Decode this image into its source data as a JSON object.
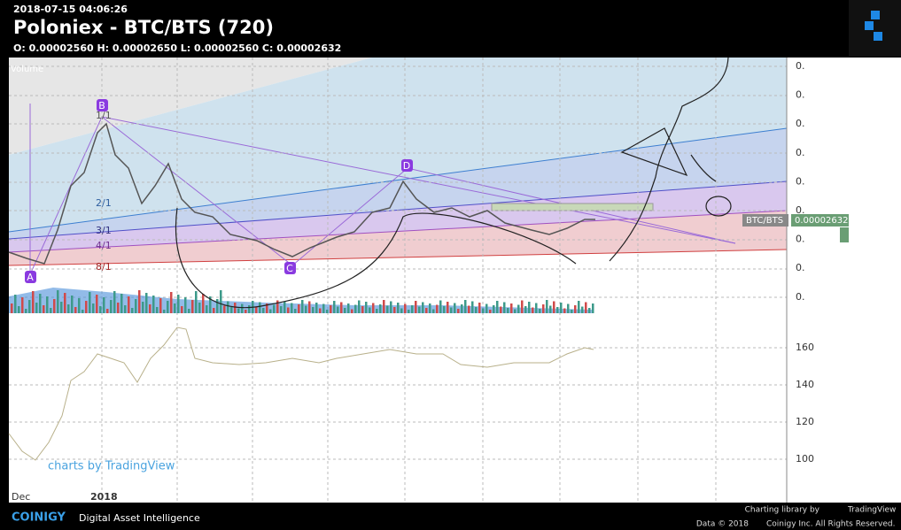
{
  "header": {
    "timestamp": "2018-07-15 04:06:26",
    "title": "Poloniex - BTC/BTS (720)",
    "ohlc": "O: 0.00002560 H: 0.00002650 L: 0.00002560 C: 0.00002632"
  },
  "chart": {
    "volume_label": "Volume",
    "fib_labels": [
      "1/1",
      "2/1",
      "3/1",
      "4/1",
      "8/1"
    ],
    "points": [
      "A",
      "B",
      "C",
      "D"
    ],
    "price_axis": [
      "0.",
      "0.",
      "0.",
      "0.",
      "0.",
      "0.",
      "0.",
      "0.",
      "0."
    ],
    "indicator_axis": [
      "160",
      "140",
      "120",
      "100"
    ],
    "symbol_tag": "BTC/BTS",
    "last_price": "0.00002632",
    "watermark": "charts by TradingView",
    "time_axis": [
      "Dec",
      "2018"
    ]
  },
  "footer": {
    "brand": "COINIGY",
    "tagline": "Digital Asset Intelligence",
    "library": "Charting library by",
    "library_brand": "TradingView",
    "copyright_year": "Data © 2018",
    "copyright": "Coinigy Inc. All Rights Reserved."
  }
}
